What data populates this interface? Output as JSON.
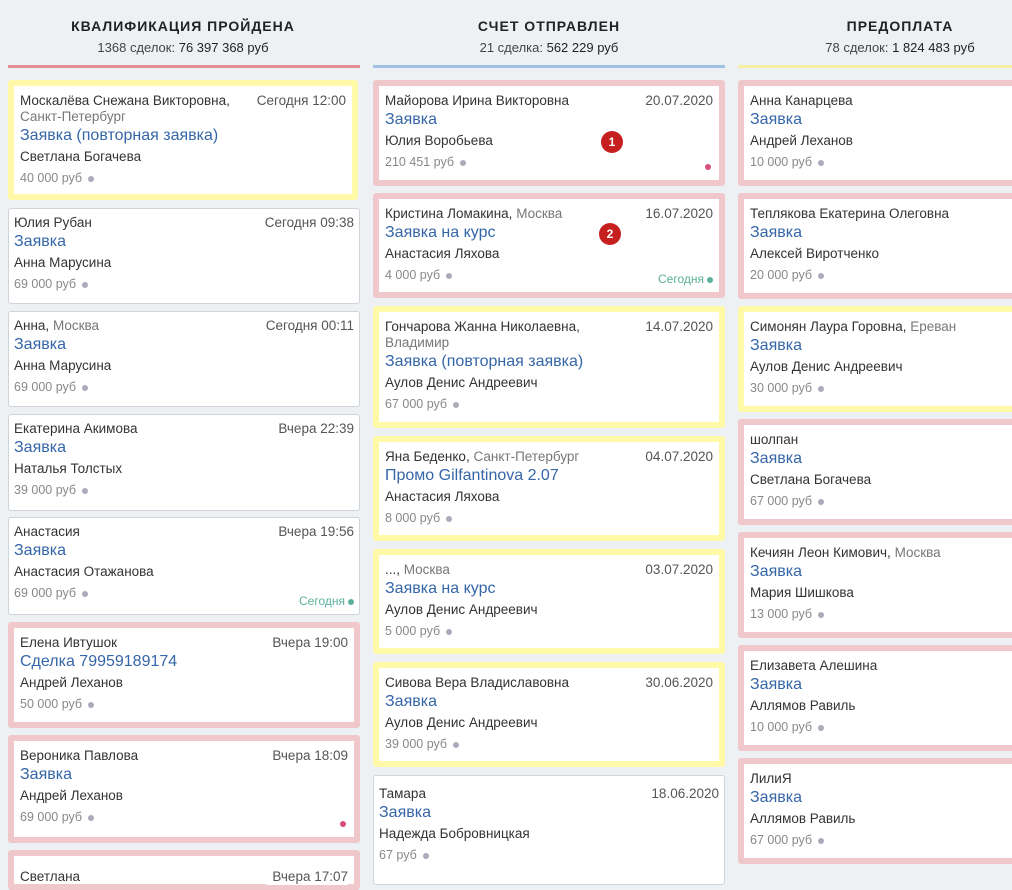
{
  "columns": [
    {
      "title": "КВАЛИФИКАЦИЯ ПРОЙДЕНА",
      "count_label": "1368 сделок:",
      "sum": "76 397 368 руб",
      "accent": "#e28f92",
      "cards": [
        {
          "name": "Москалёва Снежана Викторовна,",
          "city": "Санкт-Петербург",
          "date": "Сегодня 12:00",
          "link": "Заявка (повторная заявка)",
          "person": "Светлана Богачева",
          "amount": "40 000 руб"
        },
        {
          "name": "Юлия Рубан",
          "date": "Сегодня 09:38",
          "link": "Заявка",
          "person": "Анна Марусина",
          "amount": "69 000 руб"
        },
        {
          "name": "Анна,",
          "city": "Москва",
          "date": "Сегодня 00:11",
          "link": "Заявка",
          "person": "Анна Марусина",
          "amount": "69 000 руб"
        },
        {
          "name": "Екатерина Акимова",
          "date": "Вчера 22:39",
          "link": "Заявка",
          "person": "Наталья Толстых",
          "amount": "39 000 руб"
        },
        {
          "name": "Анастасия",
          "date": "Вчера 19:56",
          "link": "Заявка",
          "person": "Анастасия Отажанова",
          "amount": "69 000 руб",
          "today": "Сегодня"
        },
        {
          "name": "Елена Ивтушок",
          "date": "Вчера 19:00",
          "link": "Сделка 79959189174",
          "person": "Андрей Леханов",
          "amount": "50 000 руб"
        },
        {
          "name": "Вероника Павлова",
          "date": "Вчера 18:09",
          "link": "Заявка",
          "person": "Андрей Леханов",
          "amount": "69 000 руб"
        },
        {
          "name": "Светлана",
          "date": "Вчера 17:07",
          "link": "",
          "person": "",
          "amount": ""
        }
      ]
    },
    {
      "title": "СЧЕТ ОТПРАВЛЕН",
      "count_label": "21 сделка:",
      "sum": "562 229 руб",
      "accent": "#9fc2e4",
      "cards": [
        {
          "name": "Майорова Ирина Викторовна",
          "date": "20.07.2020",
          "link": "Заявка",
          "person": "Юлия Воробьева",
          "amount": "210 451 руб",
          "badge": "1"
        },
        {
          "name": "Кристина Ломакина,",
          "city": "Москва",
          "date": "16.07.2020",
          "link": "Заявка на курс",
          "person": "Анастасия Ляхова",
          "amount": "4 000 руб",
          "today": "Сегодня",
          "badge": "2"
        },
        {
          "name": "Гончарова Жанна Николаевна,",
          "city": "Владимир",
          "date": "14.07.2020",
          "link": "Заявка (повторная заявка)",
          "person": "Аулов Денис Андреевич",
          "amount": "67 000 руб"
        },
        {
          "name": "Яна Беденко,",
          "city": "Санкт-Петербург",
          "date": "04.07.2020",
          "link": "Промо Gilfantinova 2.07",
          "person": "Анастасия Ляхова",
          "amount": "8 000 руб"
        },
        {
          "name": "...,",
          "city": "Москва",
          "date": "03.07.2020",
          "link": "Заявка на курс",
          "person": "Аулов Денис Андреевич",
          "amount": "5 000 руб"
        },
        {
          "name": "Сивова Вера Владиславовна",
          "date": "30.06.2020",
          "link": "Заявка",
          "person": "Аулов Денис Андреевич",
          "amount": "39 000 руб"
        },
        {
          "name": "Тамара",
          "date": "18.06.2020",
          "link": "Заявка",
          "person": "Надежда Бобровницкая",
          "amount": "67 руб"
        }
      ]
    },
    {
      "title": "ПРЕДОПЛАТА",
      "count_label": "78 сделок:",
      "sum": "1 824 483 руб",
      "accent": "#f6f0a6",
      "cards": [
        {
          "name": "Анна Канарцева",
          "link": "Заявка",
          "person": "Андрей Леханов",
          "amount": "10 000 руб"
        },
        {
          "name": "Теплякова Екатерина Олеговна",
          "link": "Заявка",
          "person": "Алексей Виротченко",
          "amount": "20 000 руб"
        },
        {
          "name": "Симонян Лаура Горовна,",
          "city": "Ереван",
          "link": "Заявка",
          "person": "Аулов Денис Андреевич",
          "amount": "30 000 руб"
        },
        {
          "name": "шолпан",
          "link": "Заявка",
          "person": "Светлана Богачева",
          "amount": "67 000 руб"
        },
        {
          "name": "Кечиян Леон Кимович,",
          "city": "Москва",
          "link": "Заявка",
          "person": "Мария Шишкова",
          "amount": "13 000 руб"
        },
        {
          "name": "Елизавета Алешина",
          "link": "Заявка",
          "person": "Аллямов Равиль",
          "amount": "10 000 руб"
        },
        {
          "name": "ЛилиЯ",
          "link": "Заявка",
          "person": "Аллямов Равиль",
          "amount": "67 000 руб"
        }
      ]
    }
  ]
}
